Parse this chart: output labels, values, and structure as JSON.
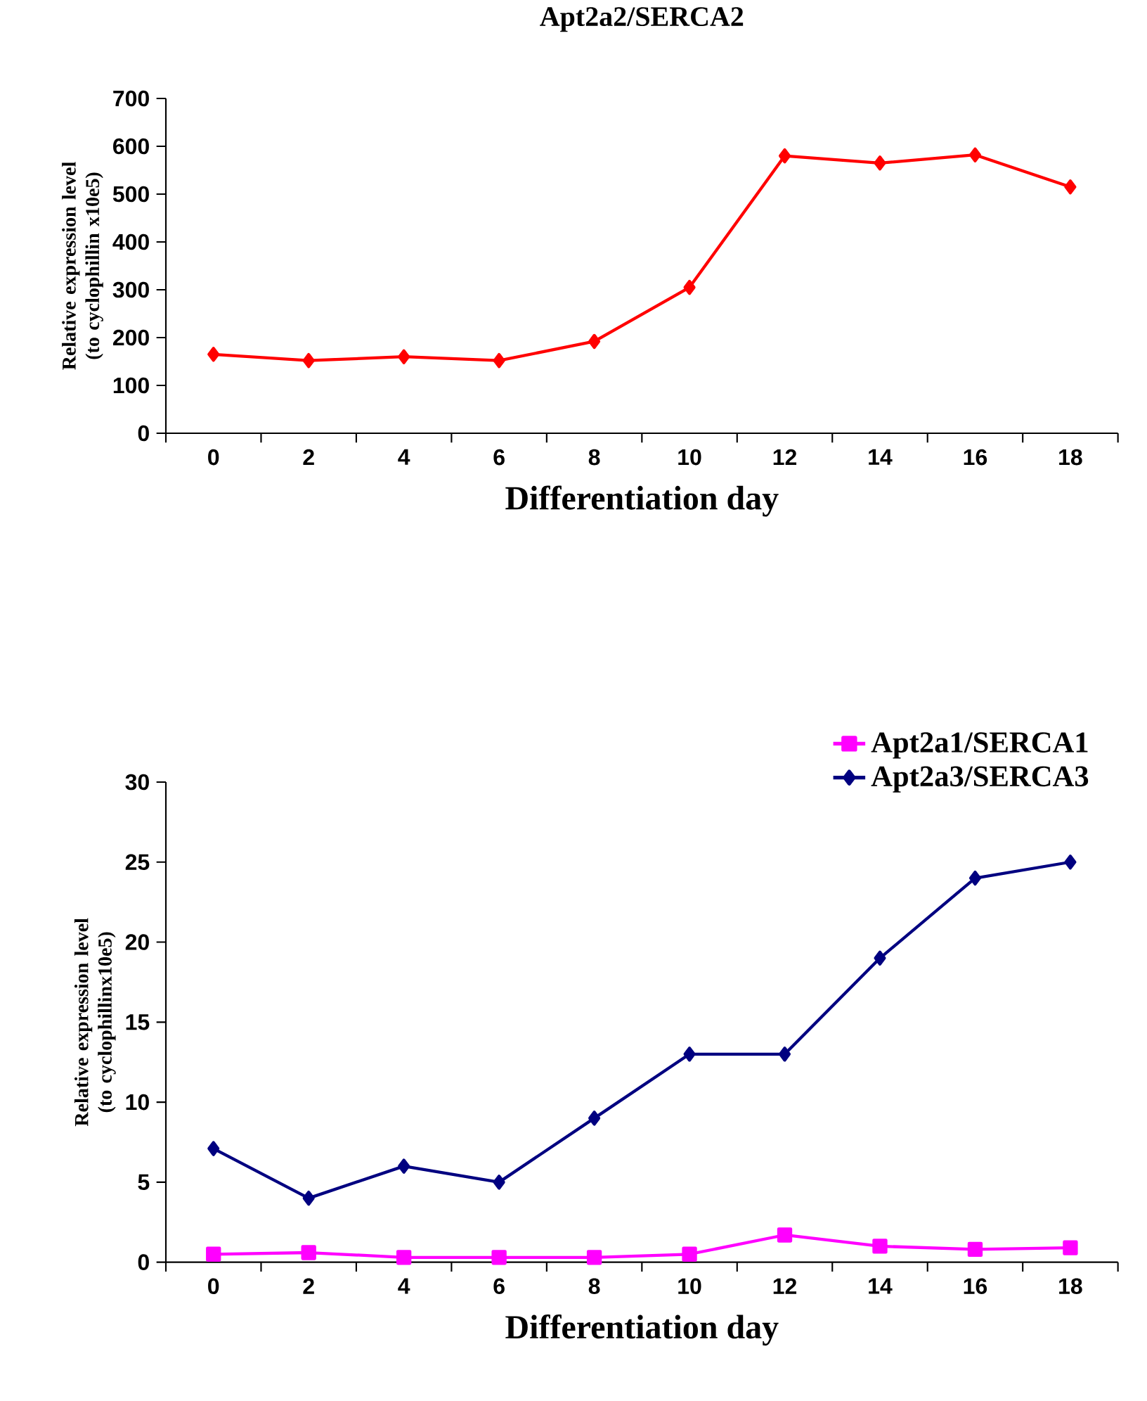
{
  "chart_data": [
    {
      "type": "line",
      "title": "Apt2a2/SERCA2",
      "xlabel": "Differentiation day",
      "ylabel": "Relative expression level (to cyclophillin x10e5)",
      "categories": [
        "0",
        "2",
        "4",
        "6",
        "8",
        "10",
        "12",
        "14",
        "16",
        "18"
      ],
      "marker": "diamond",
      "ylim": [
        0,
        700
      ],
      "yticks": [
        0,
        100,
        200,
        300,
        400,
        500,
        600,
        700
      ],
      "series": [
        {
          "color": "#ff0000",
          "values": [
            165,
            152,
            160,
            152,
            192,
            305,
            580,
            565,
            582,
            515
          ]
        }
      ]
    },
    {
      "type": "line",
      "xlabel": "Differentiation day",
      "ylabel": "Relative expression level (to cyclophillinx10e5)",
      "categories": [
        "0",
        "2",
        "4",
        "6",
        "8",
        "10",
        "12",
        "14",
        "16",
        "18"
      ],
      "legend": "top right",
      "ylim": [
        0,
        30
      ],
      "yticks": [
        0,
        5,
        10,
        15,
        20,
        25,
        30
      ],
      "series": [
        {
          "name": "Apt2a1/SERCA1",
          "color": "#ff00ff",
          "marker": "square",
          "values": [
            0.5,
            0.6,
            0.3,
            0.3,
            0.3,
            0.5,
            1.7,
            1,
            0.8,
            0.9
          ]
        },
        {
          "name": "Apt2a3/SERCA3",
          "color": "#000080",
          "marker": "diamond",
          "values": [
            7.1,
            4,
            6,
            5,
            9,
            13,
            13,
            19,
            24,
            25
          ]
        }
      ]
    }
  ]
}
